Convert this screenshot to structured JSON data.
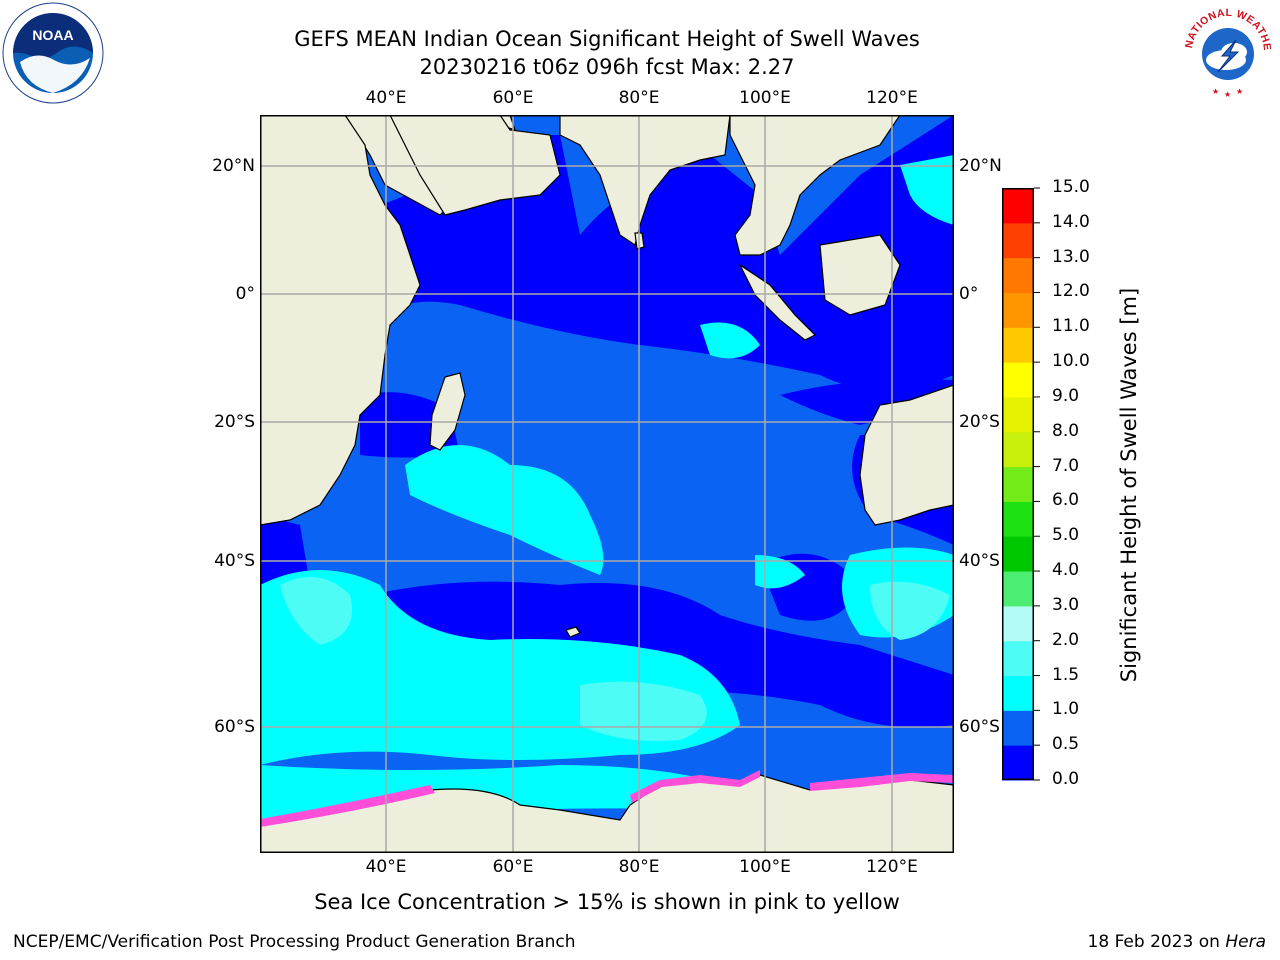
{
  "title": {
    "line1": "GEFS MEAN Indian Ocean Significant Height of Swell Waves",
    "line2": "20230216 t06z 096h fcst   Max: 2.27"
  },
  "axes": {
    "lon_ticks": [
      "40°E",
      "60°E",
      "80°E",
      "100°E",
      "120°E"
    ],
    "lat_ticks_left": [
      "20°N",
      "0°",
      "20°S",
      "40°S",
      "60°S"
    ],
    "lat_ticks_right": [
      "20°N",
      "0°",
      "20°S",
      "40°S",
      "60°S"
    ]
  },
  "colorbar": {
    "title": "Significant Height of Swell Waves [m]",
    "ticks": [
      "0.0",
      "0.5",
      "1.0",
      "1.5",
      "2.0",
      "3.0",
      "4.0",
      "5.0",
      "6.0",
      "7.0",
      "8.0",
      "9.0",
      "10.0",
      "11.0",
      "12.0",
      "13.0",
      "14.0",
      "15.0"
    ],
    "colors": [
      "#0000ff",
      "#0a63f2",
      "#00ffff",
      "#4dfdf5",
      "#b3fbf5",
      "#4ced73",
      "#00c800",
      "#1de112",
      "#74ec1a",
      "#c9f00c",
      "#e5f200",
      "#ffff00",
      "#ffc800",
      "#ff9600",
      "#ff7800",
      "#ff4000",
      "#ff0000"
    ]
  },
  "legend_note": "Sea Ice Concentration > 15% is shown in pink to yellow",
  "credits": {
    "left": "NCEP/EMC/Verification Post Processing Product Generation Branch",
    "right_date": "18 Feb 2023 on",
    "right_host": "Hera"
  },
  "logos": {
    "left": "NOAA",
    "right": "NATIONAL WEATHER SERVICE"
  },
  "map_colors": {
    "land": "#eeeedd",
    "band_0_0_5": "#0000ff",
    "band_0_5_1_0": "#0a63f2",
    "band_1_0_1_5": "#00ffff",
    "band_1_5_2_0": "#4dfdf5",
    "band_2_0_3_0": "#b3fbf5",
    "sea_ice": "#ff4fd8"
  }
}
